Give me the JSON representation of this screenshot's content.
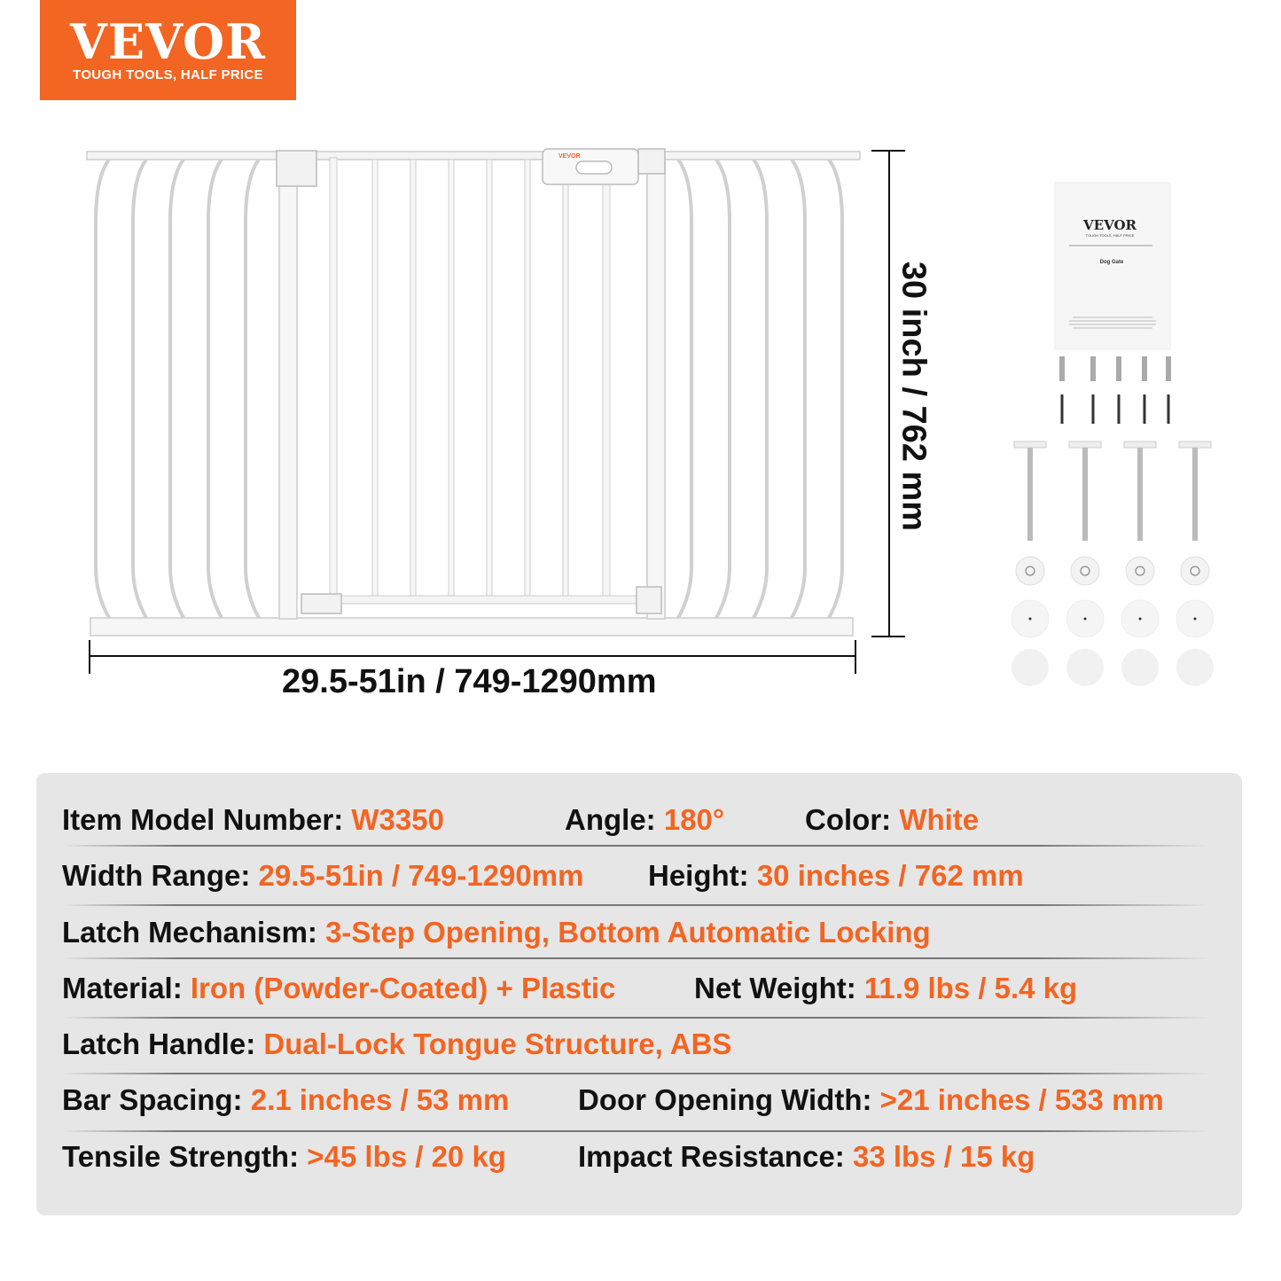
{
  "logo": {
    "brand": "VEVOR",
    "tagline": "TOUGH TOOLS, HALF PRICE"
  },
  "colors": {
    "accent": "#f26522",
    "panel": "#e6e6e6",
    "text": "#111111"
  },
  "dimensions": {
    "height": "30 inch / 762 mm",
    "width": "29.5-51in / 749-1290mm"
  },
  "manual": {
    "brand": "VEVOR",
    "tagline": "TOUGH TOOLS, HALF PRICE",
    "title": "Dog Gate"
  },
  "specs": [
    [
      {
        "label": "Item Model Number:",
        "value": "W3350"
      },
      {
        "label": "Angle:",
        "value": "180°"
      },
      {
        "label": "Color:",
        "value": "White"
      }
    ],
    [
      {
        "label": "Width Range:",
        "value": "29.5-51in / 749-1290mm"
      },
      {
        "label": "Height:",
        "value": "30 inches / 762 mm"
      }
    ],
    [
      {
        "label": "Latch Mechanism:",
        "value": "3-Step Opening, Bottom Automatic Locking"
      }
    ],
    [
      {
        "label": "Material:",
        "value": "Iron (Powder-Coated) + Plastic"
      },
      {
        "label": "Net Weight:",
        "value": "11.9 lbs / 5.4 kg"
      }
    ],
    [
      {
        "label": "Latch Handle:",
        "value": "Dual-Lock Tongue Structure, ABS"
      }
    ],
    [
      {
        "label": "Bar Spacing:",
        "value": "2.1 inches / 53 mm"
      },
      {
        "label": "Door Opening Width:",
        "value": ">21 inches / 533 mm"
      }
    ],
    [
      {
        "label": "Tensile Strength:",
        "value": ">45 lbs / 20 kg"
      },
      {
        "label": "Impact Resistance:",
        "value": "33 lbs / 15 kg"
      }
    ]
  ]
}
